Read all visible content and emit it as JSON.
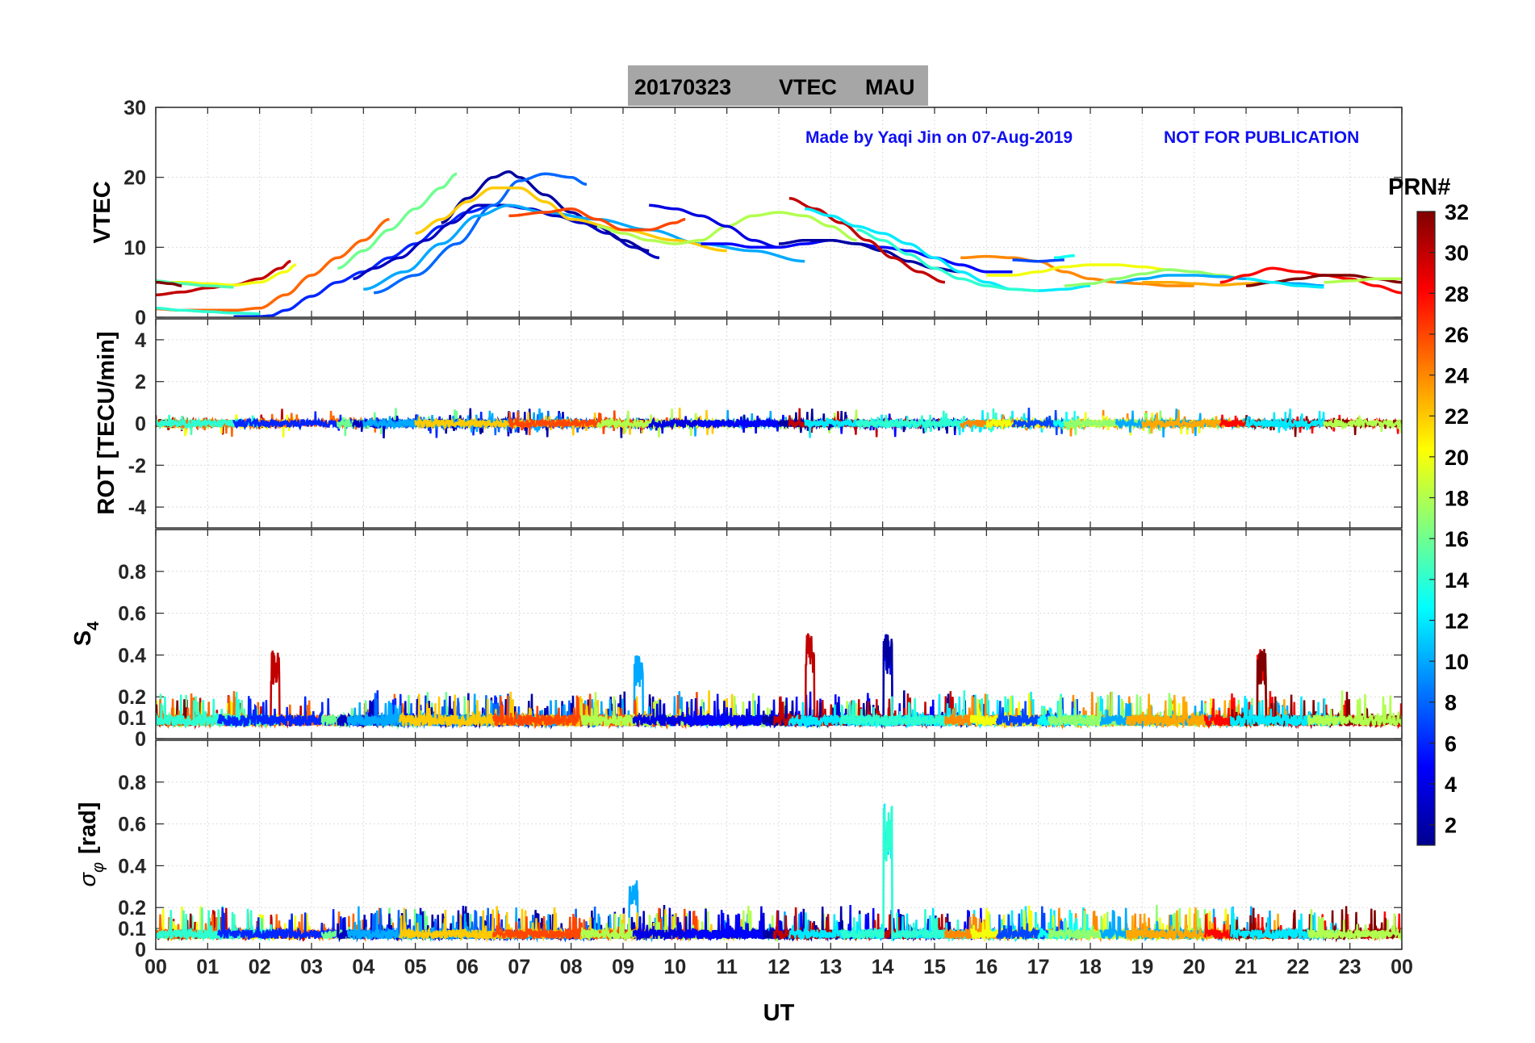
{
  "title": {
    "date": "20170323",
    "quantity": "VTEC",
    "station": "MAU"
  },
  "credit": {
    "made_by": "Made by Yaqi Jin on 07-Aug-2019",
    "notice": "NOT FOR PUBLICATION"
  },
  "colorbar": {
    "label": "PRN#",
    "range": [
      1,
      32
    ],
    "tick_labels": [
      "2",
      "4",
      "6",
      "8",
      "10",
      "12",
      "14",
      "16",
      "18",
      "20",
      "22",
      "24",
      "26",
      "28",
      "30",
      "32"
    ],
    "colormap": "jet"
  },
  "x_axis": {
    "label": "UT",
    "range_hours": [
      0,
      24
    ],
    "tick_labels": [
      "00",
      "01",
      "02",
      "03",
      "04",
      "05",
      "06",
      "07",
      "08",
      "09",
      "10",
      "11",
      "12",
      "13",
      "14",
      "15",
      "16",
      "17",
      "18",
      "19",
      "20",
      "21",
      "22",
      "23",
      "00"
    ]
  },
  "chart_data": [
    {
      "type": "line",
      "panel": "VTEC",
      "ylabel": "VTEC",
      "ylim": [
        0,
        30
      ],
      "ytick_labels": [
        "0",
        "10",
        "20",
        "30"
      ],
      "grid": true,
      "series": [
        {
          "prn": 30,
          "x": [
            0.0,
            0.5,
            1.0,
            1.5,
            2.0,
            2.4,
            2.6
          ],
          "y": [
            3.2,
            3.6,
            4.2,
            4.6,
            5.5,
            7.0,
            8.0
          ]
        },
        {
          "prn": 20,
          "x": [
            0.0,
            0.5,
            1.0,
            1.5,
            2.0,
            2.5,
            2.7
          ],
          "y": [
            5.0,
            5.0,
            4.8,
            4.6,
            5.0,
            6.5,
            7.5
          ]
        },
        {
          "prn": 15,
          "x": [
            0.0,
            0.5,
            1.0,
            1.5
          ],
          "y": [
            5.2,
            4.8,
            4.5,
            4.3
          ]
        },
        {
          "prn": 32,
          "x": [
            0.0,
            0.3,
            0.5
          ],
          "y": [
            5.0,
            4.8,
            4.5
          ]
        },
        {
          "prn": 25,
          "x": [
            0.0,
            0.5,
            1.0,
            1.5,
            2.0,
            2.5,
            3.0,
            3.5,
            4.0,
            4.5
          ],
          "y": [
            1.2,
            1.0,
            1.0,
            1.0,
            1.3,
            3.2,
            6.0,
            8.5,
            11.0,
            14.0
          ]
        },
        {
          "prn": 14,
          "x": [
            0.0,
            0.5,
            1.0,
            1.5,
            2.0
          ],
          "y": [
            1.3,
            1.0,
            0.8,
            0.6,
            0.5
          ]
        },
        {
          "prn": 6,
          "x": [
            1.5,
            2.0,
            2.2,
            2.5,
            3.0,
            3.5,
            4.0,
            4.5,
            5.0,
            5.5,
            6.0,
            6.5
          ],
          "y": [
            0.1,
            0.1,
            0.2,
            1.0,
            3.0,
            5.0,
            6.5,
            8.5,
            10.5,
            13.0,
            15.0,
            16.0
          ]
        },
        {
          "prn": 16,
          "x": [
            3.5,
            4.0,
            4.5,
            5.0,
            5.5,
            5.8
          ],
          "y": [
            7.0,
            9.5,
            12.5,
            15.5,
            18.5,
            20.5
          ]
        },
        {
          "prn": 3,
          "x": [
            3.8,
            4.2,
            4.7,
            5.2,
            5.7,
            6.2,
            6.7,
            7.2,
            7.7,
            8.2,
            8.7,
            9.2,
            9.7
          ],
          "y": [
            5.5,
            7.0,
            8.5,
            11.0,
            13.5,
            16.0,
            16.0,
            15.5,
            14.5,
            13.5,
            12.0,
            10.0,
            8.5
          ]
        },
        {
          "prn": 2,
          "x": [
            5.5,
            6.0,
            6.5,
            6.8,
            7.0,
            7.5,
            8.0,
            8.5,
            9.0,
            9.5
          ],
          "y": [
            13.5,
            17.0,
            20.0,
            20.8,
            20.0,
            17.5,
            15.0,
            13.0,
            11.0,
            9.5
          ]
        },
        {
          "prn": 8,
          "x": [
            4.2,
            5.0,
            5.8,
            6.5,
            7.0,
            7.5,
            8.0,
            8.3
          ],
          "y": [
            3.5,
            6.0,
            10.5,
            16.0,
            19.5,
            20.5,
            20.0,
            19.0
          ]
        },
        {
          "prn": 10,
          "x": [
            4.0,
            4.8,
            5.5,
            6.2,
            6.8,
            7.5,
            8.5,
            9.5,
            10.5,
            11.5,
            12.5
          ],
          "y": [
            4.0,
            6.5,
            10.5,
            14.5,
            16.0,
            15.0,
            14.0,
            12.5,
            10.5,
            9.5,
            8.0
          ]
        },
        {
          "prn": 22,
          "x": [
            5.0,
            5.5,
            6.0,
            6.5,
            7.0,
            7.5,
            8.0,
            9.0,
            10.0,
            11.0
          ],
          "y": [
            12.0,
            14.0,
            16.5,
            18.5,
            18.5,
            16.5,
            14.0,
            12.5,
            11.0,
            9.5
          ]
        },
        {
          "prn": 26,
          "x": [
            6.8,
            7.5,
            8.0,
            8.5,
            9.0,
            9.5,
            10.0,
            10.2
          ],
          "y": [
            14.5,
            15.0,
            15.5,
            14.0,
            12.5,
            12.5,
            13.5,
            14.0
          ]
        },
        {
          "prn": 18,
          "x": [
            8.5,
            9.0,
            9.5,
            10.0,
            10.5,
            11.0,
            11.5,
            12.0,
            12.5,
            13.0,
            13.5
          ],
          "y": [
            13.0,
            12.0,
            11.0,
            10.5,
            11.0,
            13.0,
            14.5,
            15.0,
            14.5,
            13.0,
            11.0
          ]
        },
        {
          "prn": 4,
          "x": [
            9.5,
            10.0,
            10.5,
            11.0,
            11.5,
            12.0
          ],
          "y": [
            16.0,
            15.5,
            14.5,
            13.0,
            11.0,
            10.0
          ]
        },
        {
          "prn": 5,
          "x": [
            10.5,
            11.0,
            11.5,
            12.0,
            12.5,
            13.0,
            13.5,
            14.0,
            14.5,
            15.0,
            15.5,
            16.0,
            16.5
          ],
          "y": [
            10.5,
            10.5,
            10.0,
            10.0,
            10.5,
            11.0,
            10.5,
            10.0,
            9.5,
            8.5,
            7.5,
            6.5,
            6.5
          ]
        },
        {
          "prn": 2,
          "x": [
            12.0,
            12.5,
            13.0,
            13.5,
            14.0,
            14.5,
            15.0,
            15.5
          ],
          "y": [
            10.5,
            11.0,
            11.0,
            10.5,
            9.5,
            8.0,
            7.0,
            6.5
          ]
        },
        {
          "prn": 30,
          "x": [
            12.2,
            12.7,
            13.2,
            13.7,
            14.2,
            14.7,
            15.2
          ],
          "y": [
            17.0,
            15.5,
            13.5,
            11.0,
            8.5,
            6.5,
            5.0
          ]
        },
        {
          "prn": 12,
          "x": [
            12.5,
            13.0,
            13.5,
            14.0,
            14.5,
            15.0,
            15.5,
            16.0,
            16.5,
            17.0,
            17.5,
            18.0
          ],
          "y": [
            15.5,
            14.5,
            13.0,
            12.0,
            10.5,
            8.5,
            6.5,
            5.0,
            4.0,
            3.8,
            4.0,
            4.5
          ]
        },
        {
          "prn": 14,
          "x": [
            13.5,
            14.0,
            14.5,
            15.0,
            15.5,
            16.0,
            16.5,
            17.0
          ],
          "y": [
            12.5,
            11.0,
            9.0,
            7.0,
            5.5,
            4.5,
            4.0,
            3.8
          ]
        },
        {
          "prn": 24,
          "x": [
            15.5,
            16.0,
            16.5,
            17.0,
            17.5,
            18.0,
            18.5,
            19.0,
            19.5,
            20.0
          ],
          "y": [
            8.5,
            8.7,
            8.5,
            8.0,
            6.5,
            5.5,
            5.0,
            4.8,
            4.5,
            4.5
          ]
        },
        {
          "prn": 20,
          "x": [
            16.0,
            16.5,
            17.0,
            17.5,
            18.0,
            18.5,
            19.0,
            19.5,
            20.0,
            20.5
          ],
          "y": [
            6.0,
            6.0,
            6.5,
            7.2,
            7.5,
            7.5,
            7.2,
            6.8,
            6.5,
            6.0
          ]
        },
        {
          "prn": 7,
          "x": [
            16.5,
            17.0,
            17.5
          ],
          "y": [
            8.2,
            8.0,
            8.2
          ]
        },
        {
          "prn": 13,
          "x": [
            17.3,
            17.7
          ],
          "y": [
            8.5,
            8.8
          ]
        },
        {
          "prn": 17,
          "x": [
            17.5,
            18.0,
            18.5,
            19.0,
            19.5,
            20.0,
            20.5,
            21.0
          ],
          "y": [
            4.5,
            4.8,
            5.5,
            6.2,
            6.8,
            6.5,
            6.0,
            5.5
          ]
        },
        {
          "prn": 10,
          "x": [
            18.5,
            19.0,
            19.5,
            20.0,
            20.5,
            21.0,
            21.5,
            22.0,
            22.5
          ],
          "y": [
            5.0,
            5.5,
            6.0,
            6.0,
            5.8,
            5.5,
            5.0,
            4.8,
            4.5
          ]
        },
        {
          "prn": 23,
          "x": [
            19.0,
            19.5,
            20.0,
            20.5,
            21.0,
            21.5
          ],
          "y": [
            5.0,
            5.0,
            4.8,
            4.6,
            4.8,
            5.0
          ]
        },
        {
          "prn": 28,
          "x": [
            20.5,
            21.0,
            21.5,
            22.0,
            22.5,
            23.0,
            23.5,
            24.0
          ],
          "y": [
            5.0,
            6.0,
            7.0,
            6.5,
            6.0,
            5.5,
            4.5,
            3.5
          ]
        },
        {
          "prn": 32,
          "x": [
            21.0,
            21.5,
            22.0,
            22.5,
            23.0,
            23.5,
            24.0
          ],
          "y": [
            4.5,
            5.0,
            5.5,
            6.0,
            6.0,
            5.5,
            5.0
          ]
        },
        {
          "prn": 12,
          "x": [
            21.0,
            21.5,
            22.0,
            22.5
          ],
          "y": [
            5.5,
            5.0,
            4.5,
            4.3
          ]
        },
        {
          "prn": 18,
          "x": [
            22.5,
            23.0,
            23.5,
            24.0
          ],
          "y": [
            5.0,
            5.2,
            5.5,
            5.5
          ]
        }
      ]
    },
    {
      "type": "line",
      "panel": "ROT",
      "ylabel": "ROT [TECU/min]",
      "ylim": [
        -5,
        5
      ],
      "ytick_labels": [
        "-4",
        "-2",
        "0",
        "2",
        "4"
      ],
      "grid": true,
      "note": "Rate of TEC, values stay near zero with fluctuations of about ±0.8 TECU/min"
    },
    {
      "type": "line",
      "panel": "S4",
      "ylabel_base": "S",
      "ylabel_sub": "4",
      "ylim": [
        0,
        1
      ],
      "ytick_labels": [
        "0",
        "0.1",
        "0.2",
        "0.4",
        "0.6",
        "0.8"
      ],
      "grid": true,
      "note": "Amplitude scintillation index, background 0.05-0.15, spikes to ~0.52 near 12.6 UT and 14.1 UT"
    },
    {
      "type": "line",
      "panel": "SigmaPhi",
      "ylabel_symbol": "σ",
      "ylabel_sub": "φ",
      "ylabel_unit": "[rad]",
      "ylim": [
        0,
        1
      ],
      "ytick_labels": [
        "0",
        "0.1",
        "0.2",
        "0.4",
        "0.6",
        "0.8"
      ],
      "grid": true,
      "note": "Phase scintillation index, background ~0.05-0.1, peak ~0.7 near 14.1 UT"
    }
  ]
}
